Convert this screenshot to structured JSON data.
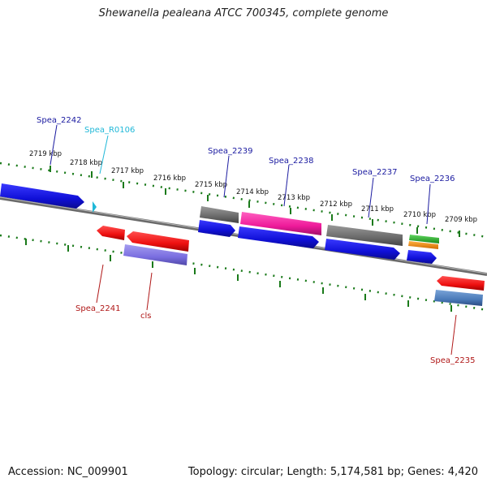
{
  "title": "Shewanella pealeana ATCC 700345, complete genome",
  "footer": {
    "accession": "Accession: NC_009901",
    "summary": "Topology: circular; Length: 5,174,581 bp; Genes: 4,420"
  },
  "colors": {
    "backbone": "#7a7a7a",
    "tick": "#1a7a1a",
    "label_forward": "#1a1aa0",
    "label_reverse": "#b01818",
    "label_rna": "#20b8d8",
    "cds_forward": "#1414e0",
    "cds_reverse": "#ee1010",
    "gene_gray": "#6e6e6e",
    "gene_purple": "#7a6ee0",
    "gene_pink": "#ee1a9a",
    "gene_steel": "#4a7ab8",
    "gene_green": "#2aa82a",
    "gene_orange": "#f08a10"
  },
  "kbp_labels": [
    {
      "text": "2719 kbp",
      "value": 2719
    },
    {
      "text": "2718 kbp",
      "value": 2718
    },
    {
      "text": "2717 kbp",
      "value": 2717
    },
    {
      "text": "2716 kbp",
      "value": 2716
    },
    {
      "text": "2715 kbp",
      "value": 2715
    },
    {
      "text": "2714 kbp",
      "value": 2714
    },
    {
      "text": "2713 kbp",
      "value": 2713
    },
    {
      "text": "2712 kbp",
      "value": 2712
    },
    {
      "text": "2711 kbp",
      "value": 2711
    },
    {
      "text": "2710 kbp",
      "value": 2710
    },
    {
      "text": "2709 kbp",
      "value": 2709
    }
  ],
  "gene_labels": [
    {
      "name": "Spea_2242",
      "strand": "forward"
    },
    {
      "name": "Spea_R0106",
      "strand": "rna"
    },
    {
      "name": "Spea_2239",
      "strand": "forward"
    },
    {
      "name": "Spea_2238",
      "strand": "forward"
    },
    {
      "name": "Spea_2237",
      "strand": "forward"
    },
    {
      "name": "Spea_2236",
      "strand": "forward"
    },
    {
      "name": "Spea_2241",
      "strand": "reverse"
    },
    {
      "name": "cls",
      "strand": "reverse"
    },
    {
      "name": "Spea_2235",
      "strand": "reverse"
    }
  ]
}
